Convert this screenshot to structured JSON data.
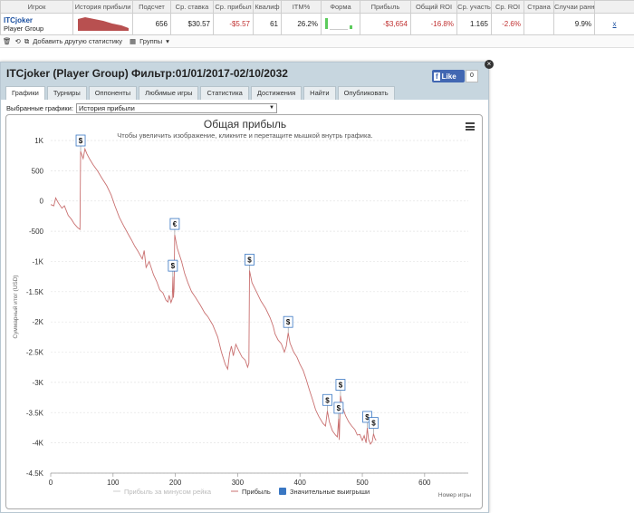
{
  "table": {
    "headers": [
      "Игрок",
      "История прибыли",
      "Подсчет",
      "Ср. ставка",
      "Ср. прибыл",
      "Квалиф",
      "ITM%",
      "Форма",
      "Прибыль",
      "Общий ROI",
      "Ср. участь",
      "Ср. ROI",
      "Страна",
      "Случаи ранн"
    ],
    "row": {
      "player_name": "ITCjoker",
      "player_group": "Player Group",
      "count": "656",
      "avg_stake": "$30.57",
      "avg_profit": "-$5.57",
      "qualified": "61",
      "itm": "26.2%",
      "profit": "-$3,654",
      "total_roi": "-16.8%",
      "avg_participants": "1.165",
      "avg_roi": "-2.6%",
      "country": "",
      "early_cases": "9.9%",
      "remove_link": "x"
    }
  },
  "toolbar": {
    "add_stat": "Добавить другую статистику",
    "groups": "Группы"
  },
  "window": {
    "title": "ITCjoker (Player Group) Фильтр:01/01/2017-02/10/2032",
    "like_label": "Like",
    "like_count": "0",
    "tabs": [
      "Графики",
      "Турниры",
      "Оппоненты",
      "Любимые игры",
      "Статистика",
      "Достижения",
      "Найти",
      "Опубликовать"
    ],
    "select_label": "Выбранные графики:",
    "select_value": "История прибыли"
  },
  "chart_data": {
    "type": "line",
    "title": "Общая прибыль",
    "subtitle": "Чтобы увеличить изображение, кликните и перетащите мышкой внутрь графика.",
    "xlabel": "Номер игры",
    "ylabel": "Суммарный итог (USD)",
    "xlim": [
      0,
      670
    ],
    "ylim": [
      -4500,
      1000
    ],
    "xticks": [
      0,
      100,
      200,
      300,
      400,
      500,
      600
    ],
    "yticks": [
      1000,
      500,
      0,
      -500,
      -1000,
      -1500,
      -2000,
      -2500,
      -3000,
      -3500,
      -4000,
      -4500
    ],
    "ytick_labels": [
      "1K",
      "500",
      "0",
      "-500",
      "-1K",
      "-1.5K",
      "-2K",
      "-2.5K",
      "-3K",
      "-3.5K",
      "-4K",
      "-4.5K"
    ],
    "legend": [
      "Прибыль за минусом рейка",
      "Прибыль",
      "Значительные выигрыши"
    ],
    "line_color": "#c97070",
    "series": [
      {
        "name": "Прибыль",
        "points": [
          [
            0,
            -60
          ],
          [
            5,
            -80
          ],
          [
            8,
            50
          ],
          [
            12,
            -30
          ],
          [
            18,
            -120
          ],
          [
            22,
            -80
          ],
          [
            28,
            -240
          ],
          [
            33,
            -300
          ],
          [
            38,
            -380
          ],
          [
            43,
            -440
          ],
          [
            47,
            -470
          ],
          [
            48,
            820
          ],
          [
            52,
            700
          ],
          [
            55,
            860
          ],
          [
            58,
            780
          ],
          [
            62,
            700
          ],
          [
            68,
            600
          ],
          [
            75,
            500
          ],
          [
            82,
            380
          ],
          [
            90,
            250
          ],
          [
            97,
            100
          ],
          [
            103,
            -80
          ],
          [
            110,
            -270
          ],
          [
            118,
            -430
          ],
          [
            125,
            -560
          ],
          [
            130,
            -650
          ],
          [
            135,
            -750
          ],
          [
            140,
            -830
          ],
          [
            147,
            -960
          ],
          [
            150,
            -820
          ],
          [
            153,
            -1100
          ],
          [
            158,
            -1000
          ],
          [
            165,
            -1220
          ],
          [
            170,
            -1330
          ],
          [
            175,
            -1470
          ],
          [
            180,
            -1520
          ],
          [
            185,
            -1640
          ],
          [
            188,
            -1670
          ],
          [
            190,
            -1560
          ],
          [
            193,
            -1680
          ],
          [
            195,
            -1620
          ],
          [
            196,
            -1250
          ],
          [
            197,
            -1600
          ],
          [
            198,
            -1450
          ],
          [
            199,
            -560
          ],
          [
            203,
            -780
          ],
          [
            210,
            -1000
          ],
          [
            215,
            -1200
          ],
          [
            220,
            -1350
          ],
          [
            226,
            -1500
          ],
          [
            232,
            -1590
          ],
          [
            240,
            -1720
          ],
          [
            247,
            -1850
          ],
          [
            252,
            -1910
          ],
          [
            260,
            -2050
          ],
          [
            268,
            -2250
          ],
          [
            274,
            -2500
          ],
          [
            280,
            -2700
          ],
          [
            284,
            -2780
          ],
          [
            287,
            -2520
          ],
          [
            290,
            -2400
          ],
          [
            293,
            -2560
          ],
          [
            297,
            -2370
          ],
          [
            302,
            -2480
          ],
          [
            307,
            -2580
          ],
          [
            312,
            -2630
          ],
          [
            316,
            -2750
          ],
          [
            318,
            -2680
          ],
          [
            319,
            -1150
          ],
          [
            323,
            -1350
          ],
          [
            330,
            -1500
          ],
          [
            337,
            -1650
          ],
          [
            345,
            -1780
          ],
          [
            352,
            -1930
          ],
          [
            357,
            -2070
          ],
          [
            360,
            -2200
          ],
          [
            365,
            -2300
          ],
          [
            370,
            -2360
          ],
          [
            375,
            -2500
          ],
          [
            378,
            -2400
          ],
          [
            381,
            -2180
          ],
          [
            384,
            -2350
          ],
          [
            390,
            -2500
          ],
          [
            395,
            -2580
          ],
          [
            400,
            -2700
          ],
          [
            405,
            -2800
          ],
          [
            410,
            -2950
          ],
          [
            415,
            -3120
          ],
          [
            420,
            -3280
          ],
          [
            425,
            -3450
          ],
          [
            430,
            -3560
          ],
          [
            437,
            -3680
          ],
          [
            441,
            -3720
          ],
          [
            444,
            -3470
          ],
          [
            447,
            -3650
          ],
          [
            452,
            -3800
          ],
          [
            457,
            -3870
          ],
          [
            460,
            -3900
          ],
          [
            462,
            -3600
          ],
          [
            463,
            -3950
          ],
          [
            465,
            -3220
          ],
          [
            468,
            -3400
          ],
          [
            473,
            -3550
          ],
          [
            478,
            -3650
          ],
          [
            483,
            -3720
          ],
          [
            488,
            -3780
          ],
          [
            492,
            -3870
          ],
          [
            496,
            -3860
          ],
          [
            500,
            -3960
          ],
          [
            503,
            -3880
          ],
          [
            506,
            -4000
          ],
          [
            508,
            -3750
          ],
          [
            510,
            -3940
          ],
          [
            513,
            -4020
          ],
          [
            516,
            -3980
          ],
          [
            518,
            -3850
          ],
          [
            520,
            -3920
          ],
          [
            522,
            -3960
          ]
        ]
      }
    ],
    "markers": [
      {
        "x": 48,
        "y": 820,
        "symbol": "$"
      },
      {
        "x": 196,
        "y": -1250,
        "symbol": "$"
      },
      {
        "x": 199,
        "y": -560,
        "symbol": "€"
      },
      {
        "x": 319,
        "y": -1150,
        "symbol": "$"
      },
      {
        "x": 381,
        "y": -2180,
        "symbol": "$"
      },
      {
        "x": 444,
        "y": -3470,
        "symbol": "$"
      },
      {
        "x": 465,
        "y": -3220,
        "symbol": "$"
      },
      {
        "x": 508,
        "y": -3750,
        "symbol": "$"
      },
      {
        "x": 518,
        "y": -3850,
        "symbol": "$"
      },
      {
        "x": 462,
        "y": -3600,
        "symbol": "$"
      }
    ]
  }
}
